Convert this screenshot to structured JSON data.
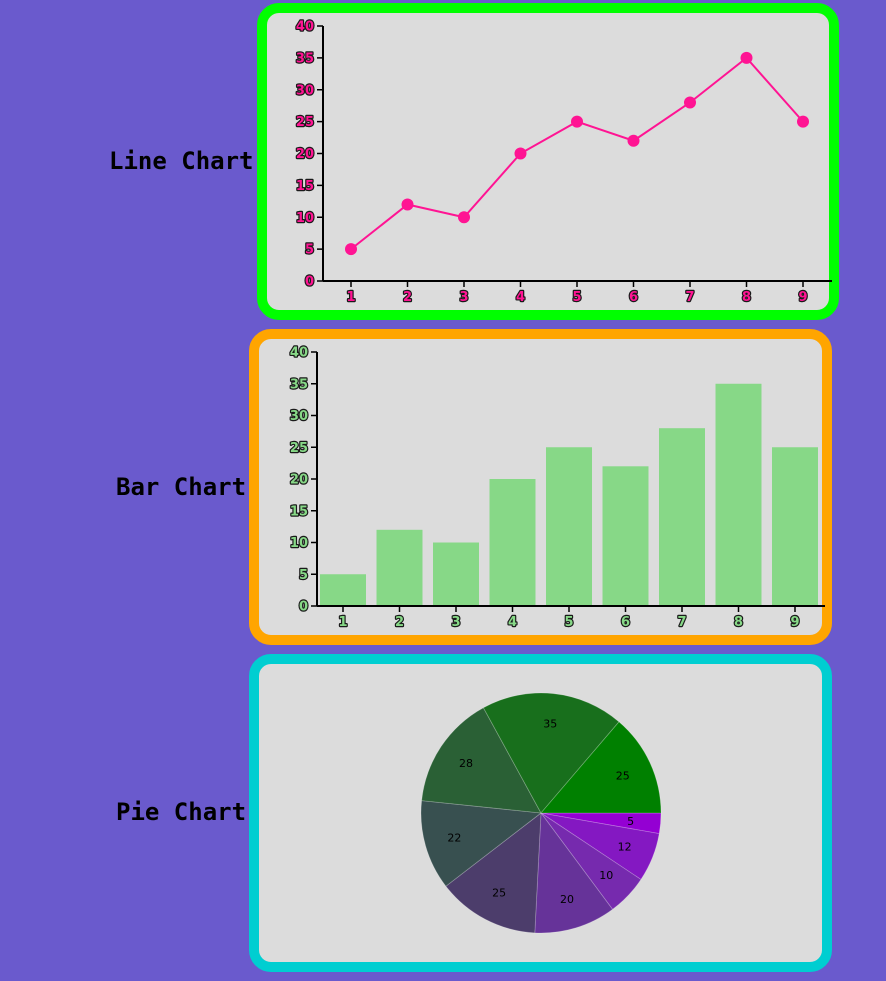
{
  "labels": {
    "line": "Line Chart",
    "bar": "Bar Chart",
    "pie": "Pie Chart"
  },
  "colors": {
    "background": "#6a5acd",
    "panel": "#dcdcdc",
    "line_border": "#00ff00",
    "bar_border": "#ffa500",
    "pie_border": "#00ced1",
    "line_series": "#ff1493",
    "line_tick_text": "#ff1493",
    "bar_fill": "#87d887",
    "bar_tick_text": "#000000"
  },
  "chart_data": [
    {
      "type": "line",
      "categories": [
        "1",
        "2",
        "3",
        "4",
        "5",
        "6",
        "7",
        "8",
        "9"
      ],
      "values": [
        5,
        12,
        10,
        20,
        25,
        22,
        28,
        35,
        25
      ],
      "ylim": [
        0,
        40
      ],
      "yticks": [
        0,
        5,
        10,
        15,
        20,
        25,
        30,
        35,
        40
      ],
      "markers": true,
      "grid": false
    },
    {
      "type": "bar",
      "categories": [
        "1",
        "2",
        "3",
        "4",
        "5",
        "6",
        "7",
        "8",
        "9"
      ],
      "values": [
        5,
        12,
        10,
        20,
        25,
        22,
        28,
        35,
        25
      ],
      "ylim": [
        0,
        40
      ],
      "yticks": [
        0,
        5,
        10,
        15,
        20,
        25,
        30,
        35,
        40
      ],
      "grid": false
    },
    {
      "type": "pie",
      "values": [
        5,
        12,
        10,
        20,
        25,
        22,
        28,
        35,
        25
      ],
      "slice_labels": [
        "5",
        "12",
        "10",
        "20",
        "25",
        "22",
        "28",
        "35",
        "25"
      ],
      "colors": [
        "#9400d3",
        "#8418c2",
        "#762aae",
        "#663399",
        "#4c3d6b",
        "#385050",
        "#2a6035",
        "#186f1c",
        "#008000"
      ],
      "direction": "clockwise",
      "start": "3 o'clock"
    }
  ]
}
